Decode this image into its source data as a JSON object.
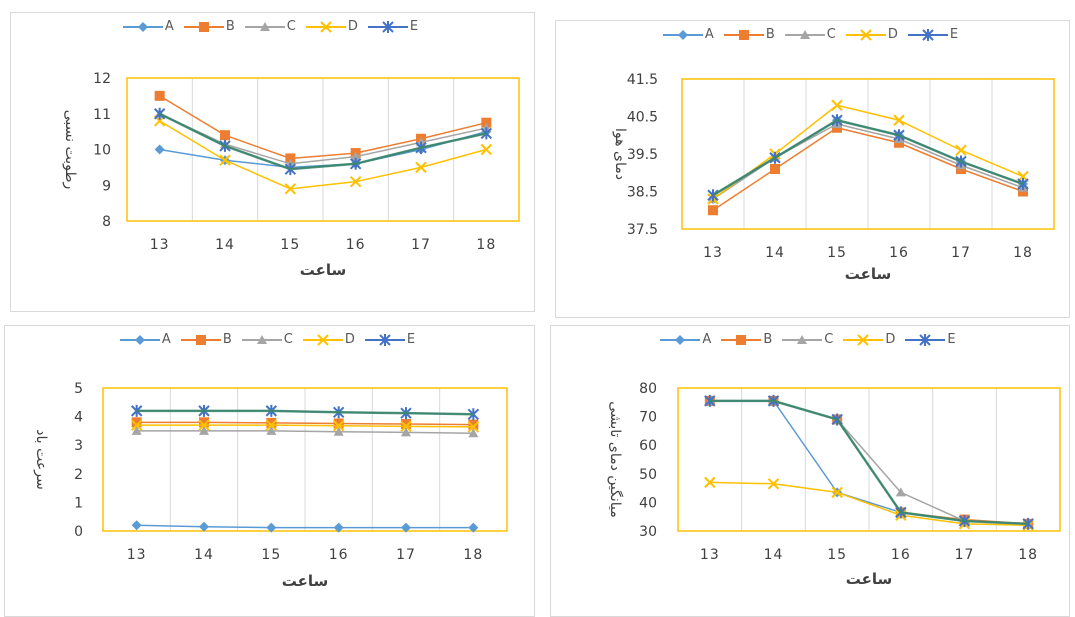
{
  "chart_data": [
    {
      "type": "line",
      "panel": "top-left",
      "categories": [
        "13",
        "14",
        "15",
        "16",
        "17",
        "18"
      ],
      "xlabel": "ساعت",
      "ylabel": "رطوبت نسبی",
      "ylim": [
        8,
        12
      ],
      "yticks": [
        "8",
        "9",
        "10",
        "11",
        "12"
      ],
      "series": [
        {
          "name": "A",
          "values": [
            10.0,
            9.7,
            9.5,
            9.6,
            10.0,
            10.5
          ]
        },
        {
          "name": "B",
          "values": [
            11.5,
            10.4,
            9.75,
            9.9,
            10.3,
            10.75
          ]
        },
        {
          "name": "C",
          "values": [
            11.0,
            10.15,
            9.6,
            9.8,
            10.2,
            10.6
          ]
        },
        {
          "name": "D",
          "values": [
            10.8,
            9.7,
            8.9,
            9.1,
            9.5,
            10.0
          ]
        },
        {
          "name": "E",
          "values": [
            11.0,
            10.1,
            9.45,
            9.6,
            10.05,
            10.45
          ]
        }
      ]
    },
    {
      "type": "line",
      "panel": "top-right",
      "categories": [
        "13",
        "14",
        "15",
        "16",
        "17",
        "18"
      ],
      "xlabel": "ساعت",
      "ylabel": "دمای هوا",
      "ylim": [
        37.5,
        41.5
      ],
      "yticks": [
        "37.5",
        "38.5",
        "39.5",
        "40.5",
        "41.5"
      ],
      "series": [
        {
          "name": "A",
          "values": [
            38.3,
            39.4,
            40.4,
            40.0,
            39.3,
            38.7
          ]
        },
        {
          "name": "B",
          "values": [
            38.0,
            39.1,
            40.2,
            39.8,
            39.1,
            38.5
          ]
        },
        {
          "name": "C",
          "values": [
            38.3,
            39.4,
            40.3,
            39.9,
            39.2,
            38.6
          ]
        },
        {
          "name": "D",
          "values": [
            38.3,
            39.5,
            40.8,
            40.4,
            39.6,
            38.9
          ]
        },
        {
          "name": "E",
          "values": [
            38.4,
            39.4,
            40.4,
            40.0,
            39.3,
            38.7
          ]
        }
      ]
    },
    {
      "type": "line",
      "panel": "bottom-left",
      "categories": [
        "13",
        "14",
        "15",
        "16",
        "17",
        "18"
      ],
      "xlabel": "ساعت",
      "ylabel": "سرعت باد",
      "ylim": [
        0,
        5
      ],
      "yticks": [
        "0",
        "1",
        "2",
        "3",
        "4",
        "5"
      ],
      "series": [
        {
          "name": "A",
          "values": [
            0.2,
            0.15,
            0.12,
            0.12,
            0.12,
            0.12
          ]
        },
        {
          "name": "B",
          "values": [
            3.8,
            3.8,
            3.78,
            3.76,
            3.74,
            3.72
          ]
        },
        {
          "name": "C",
          "values": [
            3.5,
            3.5,
            3.5,
            3.47,
            3.45,
            3.42
          ]
        },
        {
          "name": "D",
          "values": [
            3.7,
            3.7,
            3.7,
            3.68,
            3.66,
            3.64
          ]
        },
        {
          "name": "E",
          "values": [
            4.2,
            4.2,
            4.2,
            4.15,
            4.12,
            4.08
          ]
        }
      ]
    },
    {
      "type": "line",
      "panel": "bottom-right",
      "categories": [
        "13",
        "14",
        "15",
        "16",
        "17",
        "18"
      ],
      "xlabel": "ساعت",
      "ylabel": "میانگین دمای تابشی",
      "ylim": [
        30,
        80
      ],
      "yticks": [
        "30",
        "40",
        "50",
        "60",
        "70",
        "80"
      ],
      "series": [
        {
          "name": "A",
          "values": [
            75.5,
            75.5,
            43.5,
            36.5,
            33.5,
            32.5
          ]
        },
        {
          "name": "B",
          "values": [
            75.5,
            75.5,
            69.0,
            36.5,
            34.0,
            32.5
          ]
        },
        {
          "name": "C",
          "values": [
            75.5,
            75.5,
            69.0,
            43.5,
            33.5,
            32.5
          ]
        },
        {
          "name": "D",
          "values": [
            47.0,
            46.5,
            43.5,
            35.5,
            32.5,
            32.0
          ]
        },
        {
          "name": "E",
          "values": [
            75.5,
            75.5,
            69.0,
            36.5,
            33.5,
            32.5
          ]
        }
      ]
    }
  ],
  "colors": {
    "A": "#5b9bd5",
    "B": "#ed7d31",
    "C": "#a5a5a5",
    "D": "#ffc000",
    "E": "#4472c4",
    "trend": "#3c8a67",
    "plot_border": "#ffc000",
    "grid": "#d9d9d9"
  },
  "markers": {
    "A": "diamond",
    "B": "square",
    "C": "triangle",
    "D": "x",
    "E": "star"
  }
}
